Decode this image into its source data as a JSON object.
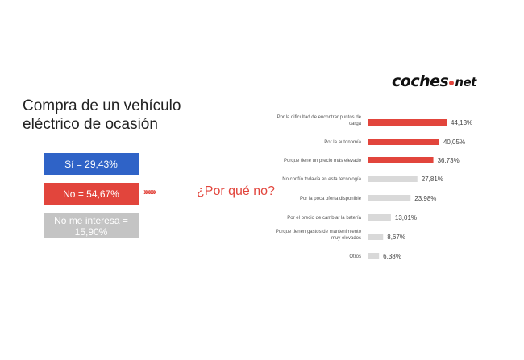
{
  "header": {
    "logo_main": "coches",
    "logo_suffix": "net"
  },
  "title": "Compra de un vehículo eléctrico de ocasión",
  "summary": {
    "si": "Sí = 29,43%",
    "no": "No = 54,67%",
    "no_interesa": "No me interesa = 15,90%"
  },
  "arrows": "›››››››",
  "question": "¿Por qué no?",
  "colors": {
    "blue": "#2f63c7",
    "red": "#e2453c",
    "gray": "#d9d9d9"
  },
  "chart_data": {
    "type": "bar",
    "orientation": "horizontal",
    "title": "¿Por qué no?",
    "categories": [
      [
        "Por la dificultad de encontrar puntos de",
        "carga"
      ],
      [
        "Por la autonomía"
      ],
      [
        "Porque tiene un precio más elevado"
      ],
      [
        "No confío todavía en esta tecnología"
      ],
      [
        "Por la poca oferta disponible"
      ],
      [
        "Por el precio de cambiar la batería"
      ],
      [
        "Porque tienen gastos de mantenimiento",
        "muy elevados"
      ],
      [
        "Otros"
      ]
    ],
    "values": [
      44.13,
      40.05,
      36.73,
      27.81,
      23.98,
      13.01,
      8.67,
      6.38
    ],
    "value_labels": [
      "44,13%",
      "40,05%",
      "36,73%",
      "27,81%",
      "23,98%",
      "13,01%",
      "8,67%",
      "6,38%"
    ],
    "highlighted": [
      true,
      true,
      true,
      false,
      false,
      false,
      false,
      false
    ],
    "xlim": [
      0,
      44.13
    ],
    "grid": false,
    "legend": "none"
  }
}
